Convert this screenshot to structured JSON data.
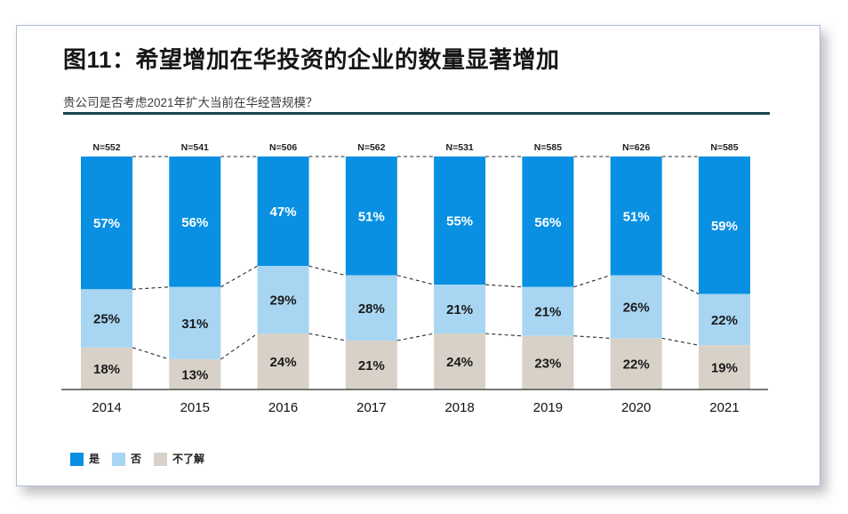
{
  "figure": {
    "title": "图11：希望增加在华投资的企业的数量显著增加",
    "subtitle": "贵公司是否考虑2021年扩大当前在华经营规模？"
  },
  "chart_data": {
    "type": "bar",
    "stacked": true,
    "orientation": "vertical",
    "categories": [
      "2014",
      "2015",
      "2016",
      "2017",
      "2018",
      "2019",
      "2020",
      "2021"
    ],
    "n_labels": [
      "N=552",
      "N=541",
      "N=506",
      "N=562",
      "N=531",
      "N=585",
      "N=626",
      "N=585"
    ],
    "series": [
      {
        "name": "是",
        "color": "#0990e2",
        "values": [
          57,
          56,
          47,
          51,
          55,
          56,
          51,
          59
        ]
      },
      {
        "name": "否",
        "color": "#a8d6f2",
        "values": [
          25,
          31,
          29,
          28,
          21,
          21,
          26,
          22
        ]
      },
      {
        "name": "不了解",
        "color": "#d8d1c8",
        "values": [
          18,
          13,
          24,
          21,
          24,
          23,
          22,
          19
        ]
      }
    ],
    "value_suffix": "%",
    "ylim": [
      0,
      100
    ],
    "grid": false,
    "legend_position": "bottom-left",
    "connector_lines": "dashed"
  },
  "styles": {
    "accent_rule_color": "#1a4450",
    "axis_color": "#4d4d4d",
    "connector_color": "#2b2b2b",
    "label_on_dark": "#ffffff",
    "label_on_light": "#1a1a1a",
    "card_border_color": "#b0bcd4"
  }
}
